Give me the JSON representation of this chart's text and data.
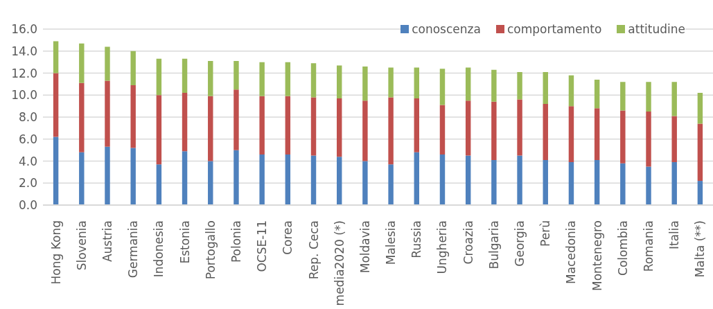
{
  "chart_data": {
    "type": "bar",
    "stacked": true,
    "categories": [
      "Hong Kong",
      "Slovenia",
      "Austria",
      "Germania",
      "Indonesia",
      "Estonia",
      "Portogallo",
      "Polonia",
      "OCSE-11",
      "Corea",
      "Rep. Ceca",
      "media2020 (*)",
      "Moldavia",
      "Malesia",
      "Russia",
      "Ungheria",
      "Croazia",
      "Bulgaria",
      "Georgia",
      "Perù",
      "Macedonia",
      "Montenegro",
      "Colombia",
      "Romania",
      "Italia",
      "Malta (**)"
    ],
    "series": [
      {
        "name": "conoscenza",
        "color": "#4f81bd",
        "values": [
          6.2,
          4.8,
          5.3,
          5.2,
          3.7,
          4.9,
          4.0,
          5.0,
          4.6,
          4.6,
          4.5,
          4.4,
          4.0,
          3.7,
          4.8,
          4.6,
          4.5,
          4.1,
          4.5,
          4.1,
          3.9,
          4.1,
          3.8,
          3.5,
          3.9,
          2.2
        ]
      },
      {
        "name": "comportamento",
        "color": "#c0504d",
        "values": [
          5.8,
          6.3,
          6.0,
          5.7,
          6.3,
          5.3,
          5.9,
          5.5,
          5.3,
          5.3,
          5.3,
          5.3,
          5.5,
          6.1,
          4.9,
          4.5,
          5.0,
          5.3,
          5.1,
          5.1,
          5.1,
          4.7,
          4.8,
          5.0,
          4.2,
          5.2
        ]
      },
      {
        "name": "attitudine",
        "color": "#9bbb59",
        "values": [
          2.9,
          3.6,
          3.1,
          3.1,
          3.3,
          3.1,
          3.2,
          2.6,
          3.1,
          3.1,
          3.1,
          3.0,
          3.1,
          2.7,
          2.8,
          3.3,
          3.0,
          2.9,
          2.5,
          2.9,
          2.8,
          2.6,
          2.6,
          2.7,
          3.1,
          2.8
        ]
      }
    ],
    "ylim": [
      0,
      16
    ],
    "yticks": [
      {
        "value": 0,
        "label": "0.0"
      },
      {
        "value": 2,
        "label": "2.0"
      },
      {
        "value": 4,
        "label": "4.0"
      },
      {
        "value": 6,
        "label": "6.0"
      },
      {
        "value": 8,
        "label": "8.0"
      },
      {
        "value": 10,
        "label": "10.0"
      },
      {
        "value": 12,
        "label": "12.0"
      },
      {
        "value": 14,
        "label": "14.0"
      },
      {
        "value": 16,
        "label": "16.0"
      }
    ],
    "grid": "y",
    "legend": "top right"
  }
}
